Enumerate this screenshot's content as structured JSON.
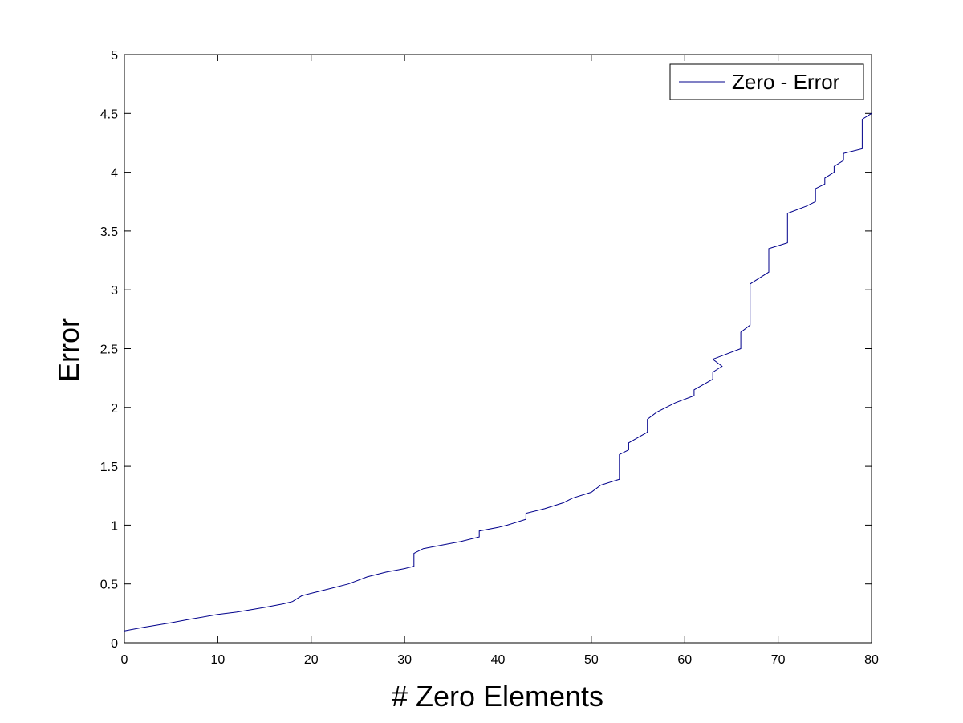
{
  "chart_data": {
    "type": "line",
    "title": "",
    "xlabel": "# Zero Elements",
    "ylabel": "Error",
    "xlim": [
      0,
      80
    ],
    "ylim": [
      0,
      5
    ],
    "xticks": [
      0,
      10,
      20,
      30,
      40,
      50,
      60,
      70,
      80
    ],
    "yticks": [
      0,
      0.5,
      1,
      1.5,
      2,
      2.5,
      3,
      3.5,
      4,
      4.5,
      5
    ],
    "xtick_labels": [
      "0",
      "10",
      "20",
      "30",
      "40",
      "50",
      "60",
      "70",
      "80"
    ],
    "ytick_labels": [
      "0",
      "0.5",
      "1",
      "1.5",
      "2",
      "2.5",
      "3",
      "3.5",
      "4",
      "4.5",
      "5"
    ],
    "grid": false,
    "legend_position": "top-right",
    "series": [
      {
        "name": "Zero - Error",
        "color": "#00008b",
        "x": [
          0,
          2,
          5,
          7,
          10,
          12,
          15,
          17,
          18,
          19,
          20,
          22,
          24,
          26,
          28,
          30,
          31,
          31,
          32,
          34,
          36,
          38,
          38,
          40,
          41,
          43,
          43,
          45,
          47,
          48,
          50,
          51,
          53,
          53,
          54,
          54,
          56,
          56,
          57,
          59,
          61,
          61,
          63,
          63,
          64,
          63,
          64,
          66,
          66,
          67,
          67,
          69,
          69,
          71,
          71,
          73,
          74,
          74,
          75,
          75,
          76,
          76,
          77,
          77,
          79,
          79,
          80
        ],
        "y": [
          0.1,
          0.13,
          0.17,
          0.2,
          0.24,
          0.26,
          0.3,
          0.33,
          0.35,
          0.4,
          0.42,
          0.46,
          0.5,
          0.56,
          0.6,
          0.63,
          0.65,
          0.76,
          0.8,
          0.83,
          0.86,
          0.9,
          0.95,
          0.98,
          1.0,
          1.05,
          1.1,
          1.14,
          1.19,
          1.23,
          1.28,
          1.34,
          1.39,
          1.6,
          1.64,
          1.7,
          1.79,
          1.9,
          1.96,
          2.04,
          2.1,
          2.15,
          2.24,
          2.3,
          2.35,
          2.41,
          2.44,
          2.5,
          2.64,
          2.7,
          3.05,
          3.15,
          3.35,
          3.4,
          3.65,
          3.71,
          3.75,
          3.86,
          3.9,
          3.95,
          4.0,
          4.05,
          4.1,
          4.16,
          4.2,
          4.45,
          4.5
        ]
      }
    ]
  }
}
